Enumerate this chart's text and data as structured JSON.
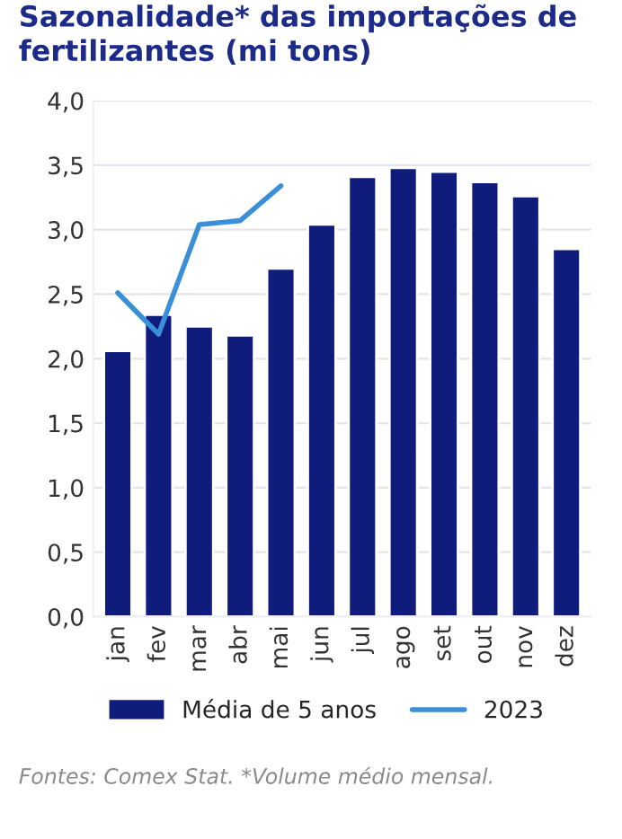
{
  "chart_data": {
    "type": "bar",
    "title": "Sazonalidade* das importações de fertilizantes (mi tons)",
    "categories": [
      "jan",
      "fev",
      "mar",
      "abr",
      "mai",
      "jun",
      "jul",
      "ago",
      "set",
      "out",
      "nov",
      "dez"
    ],
    "series": [
      {
        "name": "Média de 5 anos",
        "color": "#101c7c",
        "values": [
          2.06,
          2.34,
          2.25,
          2.18,
          2.7,
          3.04,
          3.41,
          3.48,
          3.45,
          3.37,
          3.26,
          2.85
        ]
      },
      {
        "name": "2023",
        "type": "line",
        "color": "#3a8fd9",
        "values": [
          2.51,
          2.19,
          3.04,
          3.07,
          3.34,
          null,
          null,
          null,
          null,
          null,
          null,
          null
        ]
      }
    ],
    "ylim": [
      0,
      4
    ],
    "yticks": [
      {
        "value": 0,
        "label": "0,0"
      },
      {
        "value": 0.5,
        "label": "0,5"
      },
      {
        "value": 1,
        "label": "1,0"
      },
      {
        "value": 1.5,
        "label": "1,5"
      },
      {
        "value": 2,
        "label": "2,0"
      },
      {
        "value": 2.5,
        "label": "2,5"
      },
      {
        "value": 3,
        "label": "3,0"
      },
      {
        "value": 3.5,
        "label": "3,5"
      },
      {
        "value": 4,
        "label": "4,0"
      }
    ],
    "grid": "y",
    "legend": "bottom",
    "annotations": [
      "Fontes: Comex Stat. *Volume médio mensal."
    ]
  }
}
